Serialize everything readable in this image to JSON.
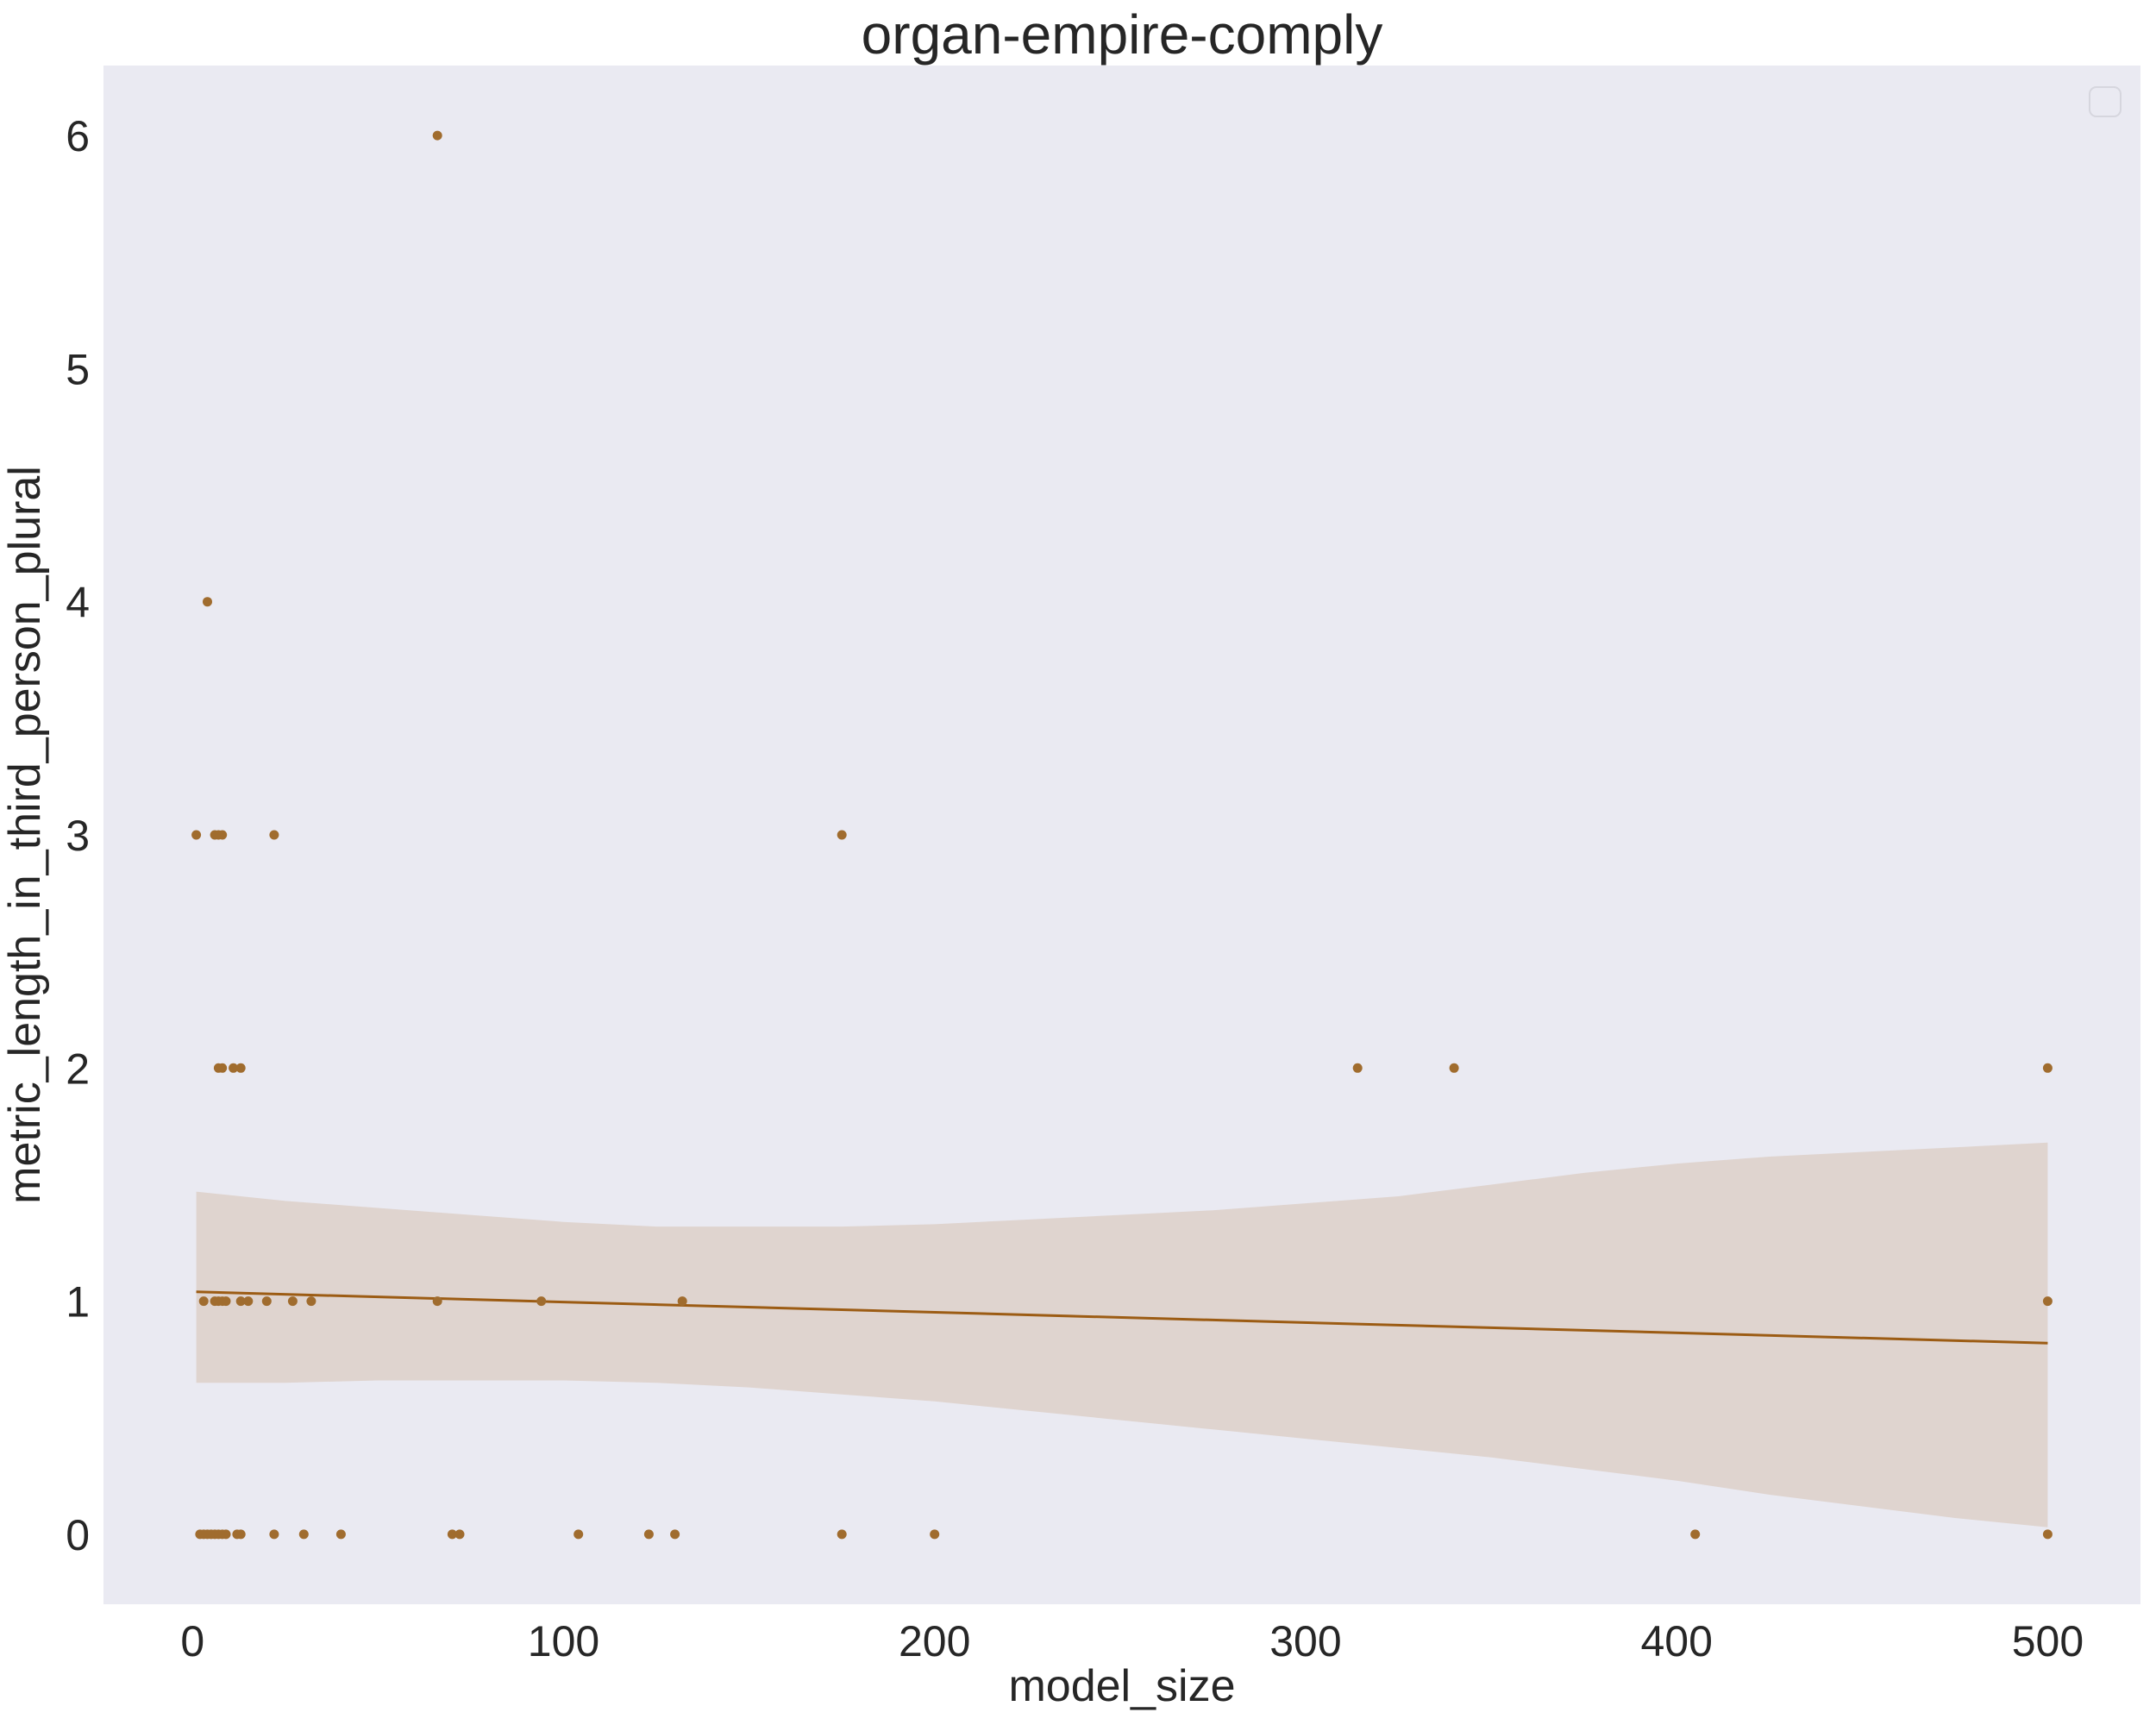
{
  "chart_data": {
    "type": "scatter",
    "title": "organ-empire-comply",
    "xlabel": "model_size",
    "ylabel": "metric_length_in_third_person_plural",
    "xlim": [
      -24,
      525
    ],
    "ylim": [
      -0.3,
      6.3
    ],
    "x_ticks": [
      0,
      100,
      200,
      300,
      400,
      500
    ],
    "y_ticks": [
      0,
      1,
      2,
      3,
      4,
      5,
      6
    ],
    "grid": false,
    "legend": {
      "placement": "top-right",
      "entries": []
    },
    "colors": {
      "background": "#eaeaf2",
      "points": "#a06c2e",
      "line": "#9c5c14",
      "band": "#dfd4cf"
    },
    "points": [
      {
        "x": 1,
        "y": 3
      },
      {
        "x": 2,
        "y": 0
      },
      {
        "x": 3,
        "y": 0
      },
      {
        "x": 3,
        "y": 1
      },
      {
        "x": 4,
        "y": 0
      },
      {
        "x": 4,
        "y": 4
      },
      {
        "x": 5,
        "y": 0
      },
      {
        "x": 6,
        "y": 0
      },
      {
        "x": 6,
        "y": 1
      },
      {
        "x": 6,
        "y": 3
      },
      {
        "x": 7,
        "y": 0
      },
      {
        "x": 7,
        "y": 1
      },
      {
        "x": 7,
        "y": 2
      },
      {
        "x": 7,
        "y": 3
      },
      {
        "x": 8,
        "y": 0
      },
      {
        "x": 8,
        "y": 1
      },
      {
        "x": 8,
        "y": 2
      },
      {
        "x": 8,
        "y": 3
      },
      {
        "x": 9,
        "y": 0
      },
      {
        "x": 9,
        "y": 1
      },
      {
        "x": 11,
        "y": 2
      },
      {
        "x": 12,
        "y": 0
      },
      {
        "x": 13,
        "y": 0
      },
      {
        "x": 13,
        "y": 1
      },
      {
        "x": 13,
        "y": 2
      },
      {
        "x": 15,
        "y": 1
      },
      {
        "x": 20,
        "y": 1
      },
      {
        "x": 22,
        "y": 0
      },
      {
        "x": 22,
        "y": 3
      },
      {
        "x": 27,
        "y": 1
      },
      {
        "x": 30,
        "y": 0
      },
      {
        "x": 32,
        "y": 1
      },
      {
        "x": 40,
        "y": 0
      },
      {
        "x": 66,
        "y": 1
      },
      {
        "x": 66,
        "y": 6
      },
      {
        "x": 70,
        "y": 0
      },
      {
        "x": 72,
        "y": 0
      },
      {
        "x": 94,
        "y": 1
      },
      {
        "x": 104,
        "y": 0
      },
      {
        "x": 123,
        "y": 0
      },
      {
        "x": 130,
        "y": 0
      },
      {
        "x": 132,
        "y": 1
      },
      {
        "x": 175,
        "y": 0
      },
      {
        "x": 175,
        "y": 3
      },
      {
        "x": 200,
        "y": 0
      },
      {
        "x": 314,
        "y": 2
      },
      {
        "x": 340,
        "y": 2
      },
      {
        "x": 405,
        "y": 0
      },
      {
        "x": 500,
        "y": 0
      },
      {
        "x": 500,
        "y": 1
      },
      {
        "x": 500,
        "y": 2
      }
    ],
    "regression": {
      "x": [
        1,
        500
      ],
      "y": [
        1.04,
        0.82
      ]
    },
    "confidence_band": {
      "x": [
        1,
        25,
        50,
        75,
        100,
        125,
        150,
        175,
        200,
        225,
        250,
        275,
        300,
        325,
        350,
        375,
        400,
        425,
        450,
        475,
        500
      ],
      "upper": [
        1.47,
        1.43,
        1.4,
        1.37,
        1.34,
        1.32,
        1.32,
        1.32,
        1.33,
        1.35,
        1.37,
        1.39,
        1.42,
        1.45,
        1.5,
        1.55,
        1.59,
        1.62,
        1.64,
        1.66,
        1.68
      ],
      "lower": [
        0.65,
        0.65,
        0.66,
        0.66,
        0.66,
        0.65,
        0.63,
        0.6,
        0.57,
        0.53,
        0.49,
        0.45,
        0.41,
        0.37,
        0.33,
        0.28,
        0.23,
        0.17,
        0.12,
        0.07,
        0.03
      ]
    }
  }
}
